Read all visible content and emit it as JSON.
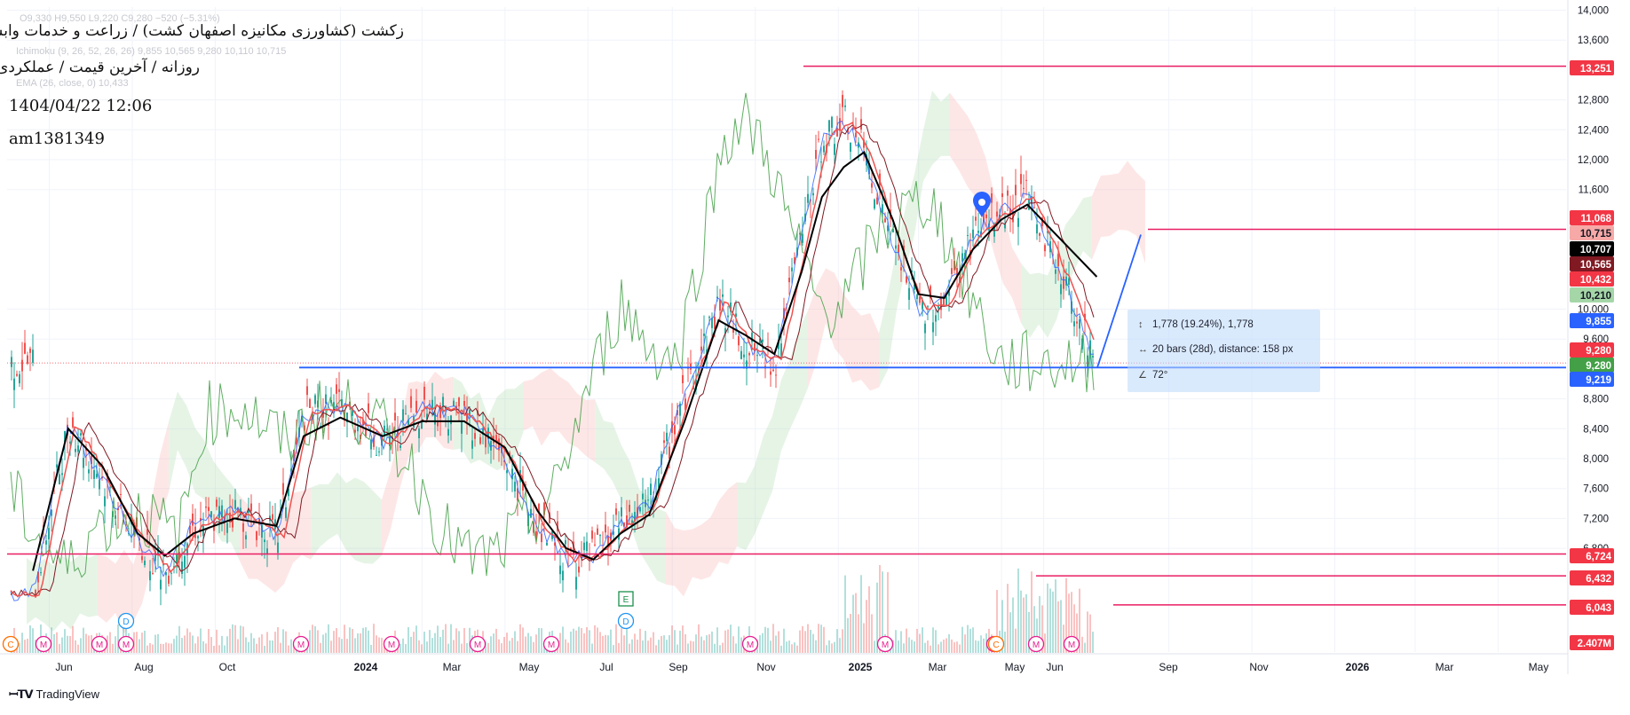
{
  "header": {
    "symbol_title": "زکشت (کشاورزی مکانیزه اصفهان کشت) / زراعت و خدمات وابسته",
    "timeframe_line": "روزانه / آخرین قیمت / عملکردی",
    "datetime": "1404/04/22 12:06",
    "author": "am1381349",
    "legend_ohlc": "O9,330 H9,550 L9,220 C9,280 −520 (−5.31%)",
    "legend_ichimoku": "Ichimoku (9, 26, 52, 26, 26)  9,855  10,565  9,280  10,110  10,715",
    "legend_ema": "EMA (26, close, 0)  10,433"
  },
  "price_scale": {
    "ticks": [
      "14,000",
      "13,600",
      "12,800",
      "12,400",
      "12,000",
      "11,600",
      "10,000",
      "9,600",
      "8,800",
      "8,400",
      "8,000",
      "7,600",
      "7,200",
      "6,800"
    ],
    "tick_values": [
      14000,
      13600,
      12800,
      12400,
      12000,
      11600,
      10000,
      9600,
      8800,
      8400,
      8000,
      7600,
      7200,
      6800
    ]
  },
  "price_labels": [
    {
      "text": "13,251",
      "value": 13251,
      "color": "#f23645"
    },
    {
      "text": "11,068",
      "value": 11068,
      "color": "#f23645"
    },
    {
      "text": "10,715",
      "value": 10715,
      "color": "#f7a9a7"
    },
    {
      "text": "10,707",
      "value": 10707,
      "color": "#000000"
    },
    {
      "text": "10,565",
      "value": 10565,
      "color": "#801922"
    },
    {
      "text": "10,432",
      "value": 10432,
      "color": "#f23645"
    },
    {
      "text": "10,210",
      "value": 10210,
      "color": "#a5d6a7"
    },
    {
      "text": "9,855",
      "value": 9855,
      "color": "#2962ff"
    },
    {
      "text": "9,280",
      "value": 9280,
      "color": "#f23645"
    },
    {
      "text": "9,280",
      "value": 9280,
      "color": "#43a047"
    },
    {
      "text": "9,219",
      "value": 9219,
      "color": "#2962ff"
    },
    {
      "text": "6,724",
      "value": 6724,
      "color": "#f23645"
    },
    {
      "text": "6,432",
      "value": 6432,
      "color": "#f23645"
    },
    {
      "text": "6,043",
      "value": 6043,
      "color": "#f23645"
    },
    {
      "text": "2.407M",
      "value": null,
      "color": "#f23645"
    }
  ],
  "time_axis": {
    "labels": [
      "Jun",
      "Aug",
      "Oct",
      "2024",
      "Mar",
      "May",
      "Jul",
      "Sep",
      "Nov",
      "2025",
      "Mar",
      "May",
      "Jun",
      "Sep",
      "Nov",
      "2026",
      "Mar",
      "May"
    ],
    "bold": [
      false,
      false,
      false,
      true,
      false,
      false,
      false,
      false,
      false,
      true,
      false,
      false,
      false,
      false,
      false,
      true,
      false,
      false
    ]
  },
  "event_markers": [
    {
      "letter": "C",
      "kind": "orange"
    },
    {
      "letter": "M",
      "kind": "pink"
    },
    {
      "letter": "M",
      "kind": "pink"
    },
    {
      "letter": "D",
      "kind": "blue"
    },
    {
      "letter": "M",
      "kind": "pink"
    },
    {
      "letter": "M",
      "kind": "pink"
    },
    {
      "letter": "M",
      "kind": "pink"
    },
    {
      "letter": "M",
      "kind": "pink"
    },
    {
      "letter": "M",
      "kind": "pink"
    },
    {
      "letter": "E",
      "kind": "green"
    },
    {
      "letter": "D",
      "kind": "blue"
    },
    {
      "letter": "M",
      "kind": "pink"
    },
    {
      "letter": "M",
      "kind": "pink"
    },
    {
      "letter": "M",
      "kind": "pink"
    },
    {
      "letter": "C",
      "kind": "orange"
    },
    {
      "letter": "M",
      "kind": "pink"
    },
    {
      "letter": "M",
      "kind": "pink"
    }
  ],
  "measure_tool": {
    "range_text": "1,778 (19.24%), 1,778",
    "bars_text": "20 bars (28d), distance: 158 px",
    "angle_text": "72°"
  },
  "branding": {
    "name": "TradingView"
  },
  "colors": {
    "red_line": "#e91e63",
    "blue_line": "#2962ff",
    "green_line": "#43a047",
    "ema_black": "#000000",
    "kumo_green": "#a5d6a7",
    "kumo_red": "#f7a9a7",
    "candle_up": "#26a69a",
    "candle_down": "#ef5350"
  },
  "chart_data": {
    "type": "line",
    "title": "زکشت (کشاورزی مکانیزه اصفهان کشت) / زراعت و خدمات وابسته",
    "timeframe": "Daily",
    "x_dates": [
      "2023-05-20",
      "2023-06-15",
      "2023-07-10",
      "2023-08-05",
      "2023-08-25",
      "2023-09-15",
      "2023-10-15",
      "2023-11-15",
      "2023-12-05",
      "2024-01-01",
      "2024-02-01",
      "2024-03-01",
      "2024-04-01",
      "2024-05-01",
      "2024-05-25",
      "2024-06-15",
      "2024-07-05",
      "2024-07-25",
      "2024-08-15",
      "2024-09-10",
      "2024-10-05",
      "2024-10-25",
      "2024-11-15",
      "2024-12-05",
      "2024-12-20",
      "2025-01-05",
      "2025-01-20",
      "2025-02-10",
      "2025-03-01",
      "2025-03-20",
      "2025-04-10",
      "2025-05-01",
      "2025-05-20",
      "2025-06-10",
      "2025-07-10"
    ],
    "series": [
      {
        "name": "EMA (26, close, 0)",
        "values": [
          6500,
          8400,
          7900,
          7000,
          6700,
          7000,
          7200,
          7100,
          8300,
          8550,
          8300,
          8500,
          8500,
          8150,
          7300,
          6800,
          6650,
          7000,
          7250,
          8500,
          9850,
          9650,
          9400,
          10500,
          11500,
          11900,
          12100,
          11200,
          10200,
          10150,
          10800,
          11200,
          11400,
          11000,
          10433
        ]
      },
      {
        "name": "Close",
        "values": [
          6200,
          8500,
          7700,
          6900,
          6500,
          7100,
          7300,
          6950,
          8600,
          8700,
          8200,
          8700,
          8600,
          8000,
          7100,
          6650,
          6700,
          7100,
          7400,
          8900,
          10100,
          9500,
          9300,
          11000,
          12300,
          12500,
          12100,
          10900,
          10000,
          10100,
          11000,
          11300,
          11500,
          10600,
          9280
        ]
      }
    ],
    "horizontal_levels": [
      13251,
      11068,
      9219,
      6724,
      6432,
      6043
    ],
    "ylim": [
      5400,
      14000
    ],
    "xlim": [
      "2023-05-01",
      "2026-06-20"
    ],
    "grid": true,
    "last": {
      "open": 9330,
      "high": 9550,
      "low": 9220,
      "close": 9280,
      "change": -520,
      "change_pct": -5.31
    }
  }
}
